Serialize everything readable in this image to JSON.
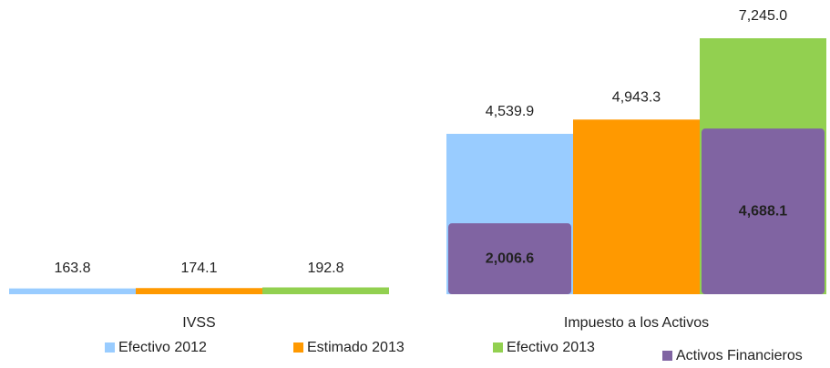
{
  "chart_data": {
    "type": "bar",
    "categories": [
      "IVSS",
      "Impuesto a los Activos"
    ],
    "series": [
      {
        "name": "Efectivo 2012",
        "color": "#99ccff",
        "values": [
          163.8,
          4539.9
        ],
        "value_labels": [
          "163.8",
          "4,539.9"
        ]
      },
      {
        "name": "Estimado 2013",
        "color": "#ff9900",
        "values": [
          174.1,
          4943.3
        ],
        "value_labels": [
          "174.1",
          "4,943.3"
        ]
      },
      {
        "name": "Efectivo 2013",
        "color": "#92d050",
        "values": [
          192.8,
          7245.0
        ],
        "value_labels": [
          "192.8",
          "7,245.0"
        ]
      }
    ],
    "overlay": {
      "name": "Activos Financieros",
      "color": "#8064a2",
      "values": [
        [
          null,
          null,
          null
        ],
        [
          2006.6,
          null,
          4688.1
        ]
      ],
      "value_labels": [
        [
          null,
          null,
          null
        ],
        [
          "2,006.6",
          null,
          "4,688.1"
        ]
      ]
    },
    "legend": "bottom"
  }
}
